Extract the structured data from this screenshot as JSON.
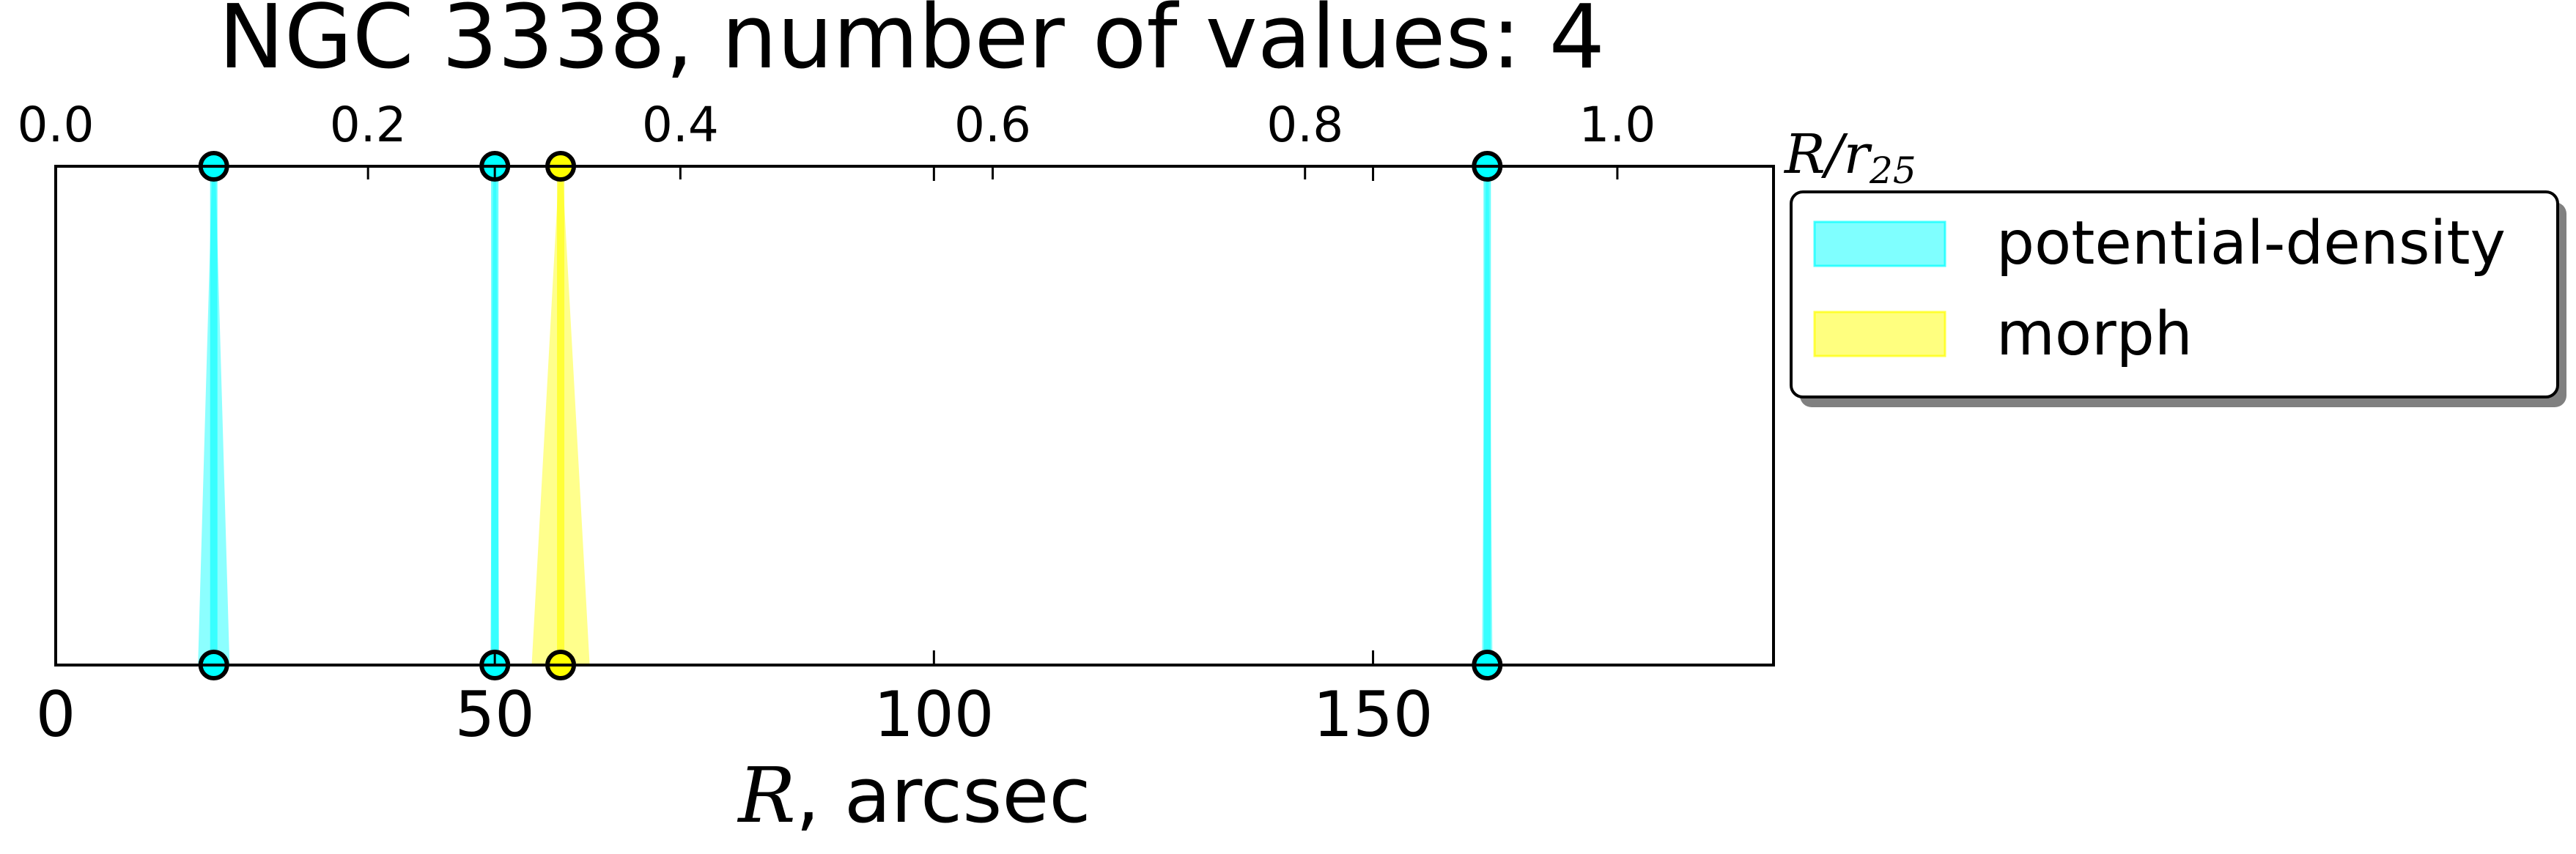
{
  "chart_data": {
    "type": "scatter",
    "title": "NGC 3338, number of values: 4",
    "xlabel": {
      "symbol": "R",
      "suffix": ", arcsec"
    },
    "top_axis_label": {
      "numerator": "R",
      "slash": "/",
      "denominator": "r",
      "subscript": "25"
    },
    "xlim": [
      0,
      195.6
    ],
    "top_xlim": [
      0.0,
      1.1
    ],
    "xticks": [
      {
        "value": 0,
        "label": "0"
      },
      {
        "value": 50,
        "label": "50"
      },
      {
        "value": 100,
        "label": "100"
      },
      {
        "value": 150,
        "label": "150"
      }
    ],
    "top_xticks": [
      {
        "value": 0.0,
        "label": "0.0"
      },
      {
        "value": 0.2,
        "label": "0.2"
      },
      {
        "value": 0.4,
        "label": "0.4"
      },
      {
        "value": 0.6,
        "label": "0.6"
      },
      {
        "value": 0.8,
        "label": "0.8"
      },
      {
        "value": 1.0,
        "label": "1.0"
      }
    ],
    "legend": {
      "placement": "outside right, top",
      "entries": [
        {
          "label": "potential-density",
          "color": "#00ffff"
        },
        {
          "label": "morph",
          "color": "#ffff00"
        }
      ]
    },
    "series": [
      {
        "name": "potential-density",
        "color": "#00ffff",
        "points": [
          {
            "x": 18,
            "x_err": 1.8
          },
          {
            "x": 50,
            "x_err": 0.5
          },
          {
            "x": 163,
            "x_err": 0.6
          }
        ]
      },
      {
        "name": "morph",
        "color": "#ffff00",
        "points": [
          {
            "x": 57.5,
            "x_err": 3.3
          }
        ]
      }
    ],
    "grid": false
  }
}
